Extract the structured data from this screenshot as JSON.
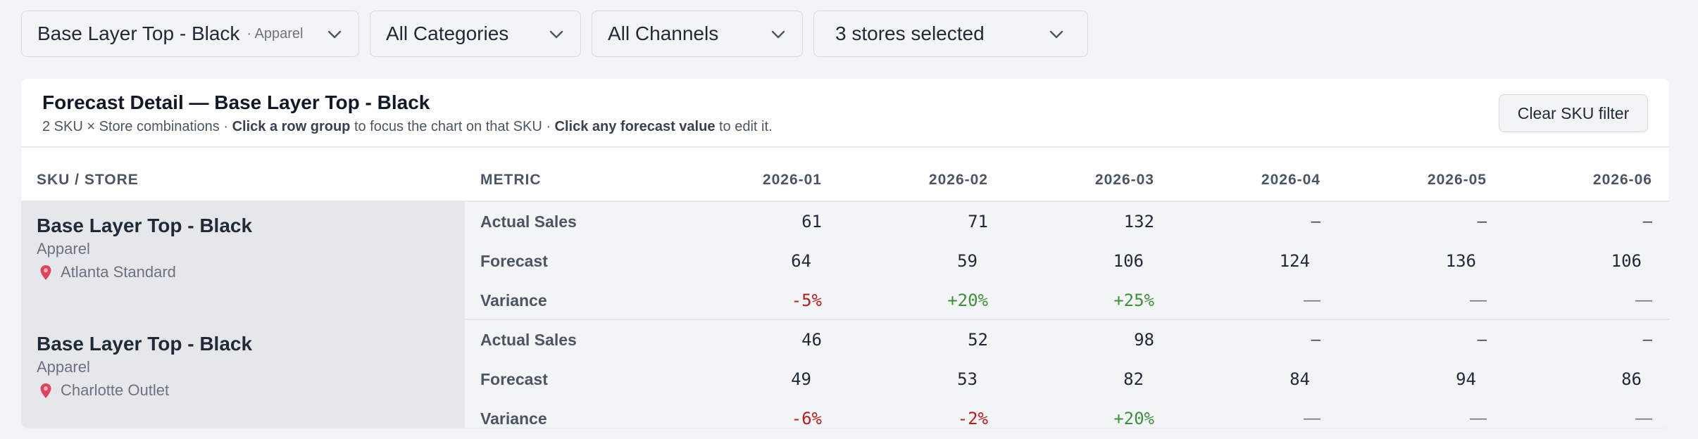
{
  "filters": {
    "product": {
      "label": "Base Layer Top - Black",
      "sub": "· Apparel"
    },
    "category": {
      "label": "All Categories"
    },
    "channel": {
      "label": "All Channels"
    },
    "stores": {
      "label": "3 stores selected"
    }
  },
  "card": {
    "title": "Forecast Detail — Base Layer Top - Black",
    "subtitle": {
      "prefix": "2 SKU × Store combinations · ",
      "bold1": "Click a row group",
      "middle": " to focus the chart on that SKU · ",
      "bold2": "Click any forecast value",
      "suffix": " to edit it."
    },
    "clear_button": "Clear SKU filter"
  },
  "table": {
    "headers": {
      "sku_store": "SKU / STORE",
      "metric": "METRIC",
      "months": [
        "2026-01",
        "2026-02",
        "2026-03",
        "2026-04",
        "2026-05",
        "2026-06"
      ]
    },
    "groups": [
      {
        "sku": "Base Layer Top - Black",
        "category": "Apparel",
        "store": "Atlanta Standard",
        "rows": [
          {
            "label": "Actual Sales",
            "values": [
              "61",
              "71",
              "132",
              "–",
              "–",
              "–"
            ]
          },
          {
            "label": "Forecast",
            "values": [
              "64",
              "59",
              "106",
              "124",
              "136",
              "106"
            ]
          },
          {
            "label": "Variance",
            "values": [
              "-5%",
              "+20%",
              "+25%",
              "—",
              "—",
              "—"
            ]
          }
        ]
      },
      {
        "sku": "Base Layer Top - Black",
        "category": "Apparel",
        "store": "Charlotte Outlet",
        "rows": [
          {
            "label": "Actual Sales",
            "values": [
              "46",
              "52",
              "98",
              "–",
              "–",
              "–"
            ]
          },
          {
            "label": "Forecast",
            "values": [
              "49",
              "53",
              "82",
              "84",
              "94",
              "86"
            ]
          },
          {
            "label": "Variance",
            "values": [
              "-6%",
              "-2%",
              "+20%",
              "—",
              "—",
              "—"
            ]
          }
        ]
      }
    ]
  },
  "colors": {
    "negative": "#b91c1c",
    "positive": "#3f8f3f",
    "pin": "#e0445a"
  },
  "icons": {
    "dropdown": "chevron-down-icon",
    "store": "map-pin-icon"
  }
}
